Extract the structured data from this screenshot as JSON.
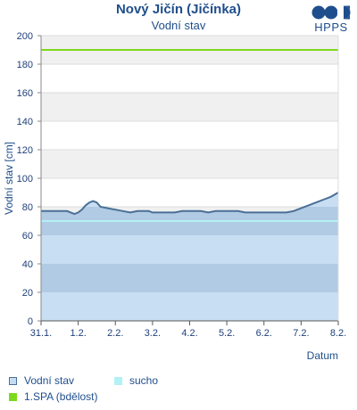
{
  "chart_data": {
    "type": "area",
    "title": "Nový Jičín (Jičínka)",
    "subtitle": "Vodní stav",
    "xlabel": "Datum",
    "ylabel": "Vodní stav [cm]",
    "ylim": [
      0,
      200
    ],
    "yticks": [
      0,
      20,
      40,
      60,
      80,
      100,
      120,
      140,
      160,
      180,
      200
    ],
    "xlim": [
      0,
      8
    ],
    "xticks": [
      {
        "x": 0,
        "label": "31.1."
      },
      {
        "x": 1,
        "label": "1.2."
      },
      {
        "x": 2,
        "label": "2.2."
      },
      {
        "x": 3,
        "label": "3.2."
      },
      {
        "x": 4,
        "label": "4.2."
      },
      {
        "x": 5,
        "label": "5.2."
      },
      {
        "x": 6,
        "label": "6.2."
      },
      {
        "x": 7,
        "label": "7.2."
      },
      {
        "x": 8,
        "label": "8.2."
      }
    ],
    "series": [
      {
        "name": "Vodní stav",
        "color": "#4a6f96",
        "fill": "#c5dcf2",
        "points": [
          [
            0.0,
            77
          ],
          [
            0.5,
            77
          ],
          [
            0.7,
            77
          ],
          [
            0.8,
            76
          ],
          [
            0.9,
            75
          ],
          [
            1.0,
            76
          ],
          [
            1.1,
            78
          ],
          [
            1.2,
            81
          ],
          [
            1.3,
            83
          ],
          [
            1.4,
            84
          ],
          [
            1.5,
            83
          ],
          [
            1.6,
            80
          ],
          [
            1.8,
            79
          ],
          [
            2.0,
            78
          ],
          [
            2.2,
            77
          ],
          [
            2.4,
            76
          ],
          [
            2.6,
            77
          ],
          [
            2.9,
            77
          ],
          [
            3.0,
            76
          ],
          [
            3.5,
            76
          ],
          [
            3.6,
            76
          ],
          [
            3.8,
            77
          ],
          [
            4.0,
            77
          ],
          [
            4.3,
            77
          ],
          [
            4.5,
            76
          ],
          [
            4.7,
            77
          ],
          [
            5.0,
            77
          ],
          [
            5.3,
            77
          ],
          [
            5.5,
            76
          ],
          [
            6.0,
            76
          ],
          [
            6.6,
            76
          ],
          [
            6.8,
            77
          ],
          [
            7.0,
            79
          ],
          [
            7.2,
            81
          ],
          [
            7.4,
            83
          ],
          [
            7.6,
            85
          ],
          [
            7.8,
            87
          ],
          [
            8.0,
            90
          ]
        ]
      }
    ],
    "thresholds": [
      {
        "name": "sucho",
        "value": 70,
        "color": "#b2f2f5"
      },
      {
        "name": "1.SPA (bdělost)",
        "value": 190,
        "color": "#7cd91e"
      }
    ],
    "legend": [
      {
        "label": "Vodní stav",
        "color": "#4a6f96",
        "fill": "#c5dcf2"
      },
      {
        "label": "sucho",
        "color": "#b2f2f5"
      },
      {
        "label": "1.SPA (bdělost)",
        "color": "#7cd91e"
      }
    ],
    "grid": true,
    "legend_position": "bottom-left"
  },
  "logo": {
    "text": "HPPS",
    "color": "#1f4e8c"
  }
}
